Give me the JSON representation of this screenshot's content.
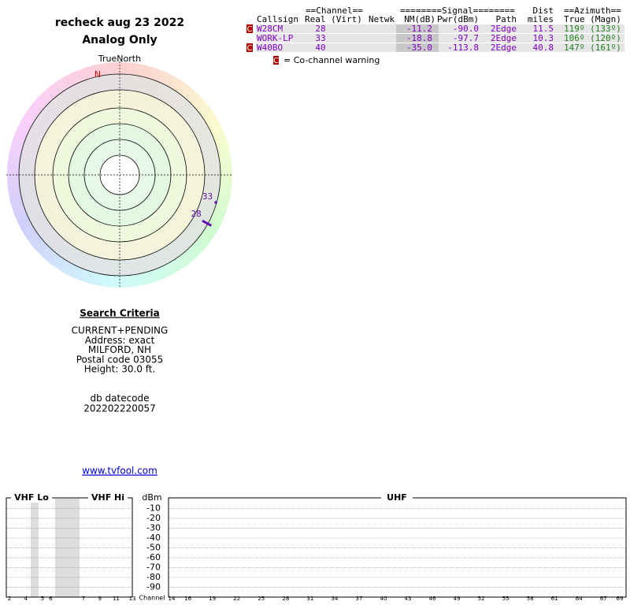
{
  "header": {
    "title": "recheck aug 23 2022",
    "subtitle": "Analog Only"
  },
  "compass": {
    "label": "TrueNorth",
    "north": "N",
    "stations": [
      {
        "label": "33",
        "azimuth": 106,
        "cochannel": false
      },
      {
        "label": "28",
        "azimuth": 119,
        "cochannel": true
      }
    ]
  },
  "table": {
    "group_headers": [
      "==Channel==",
      "========Signal========",
      "Dist",
      "==Azimuth=="
    ],
    "columns": [
      "Callsign",
      "Real (Virt)",
      "Netwk",
      "NM(dB)",
      "Pwr(dBm)",
      "Path",
      "miles",
      "True (Magn)"
    ],
    "rows": [
      {
        "flag": "C",
        "cells": [
          "W28CM",
          "28",
          "",
          "-11.2",
          "-90.0",
          "2Edge",
          "11.5",
          "119º (133º)"
        ]
      },
      {
        "flag": "",
        "cells": [
          "WORK-LP",
          "33",
          "",
          "-18.8",
          "-97.7",
          "2Edge",
          "10.3",
          "106º (120º)"
        ]
      },
      {
        "flag": "C",
        "cells": [
          "W40BO",
          "40",
          "",
          "-35.0",
          "-113.8",
          "2Edge",
          "40.8",
          "147º (161º)"
        ]
      }
    ]
  },
  "legend": {
    "marker": "C",
    "text": "= Co-channel warning"
  },
  "search": {
    "title": "Search Criteria",
    "lines": [
      "CURRENT+PENDING",
      "Address: exact",
      "MILFORD, NH",
      "Postal code 03055",
      "Height: 30.0 ft."
    ],
    "db_label": "db datecode",
    "db_value": "202202220057"
  },
  "link": "www.tvfool.com",
  "spectrum": {
    "bands": [
      "VHF Lo",
      "VHF Hi",
      "UHF"
    ],
    "unit": "dBm",
    "channel_label": "Channel",
    "ylim": [
      0,
      -100
    ],
    "yticks": [
      -10,
      -20,
      -30,
      -40,
      -50,
      -60,
      -70,
      -80,
      -90
    ],
    "vhf_ticks": [
      2,
      4,
      5,
      6,
      7,
      9,
      11,
      13
    ],
    "uhf_xlim": [
      14,
      69
    ],
    "uhf_ticks": [
      14,
      16,
      19,
      22,
      25,
      28,
      31,
      34,
      37,
      40,
      43,
      46,
      49,
      52,
      55,
      58,
      61,
      64,
      67,
      69
    ]
  }
}
